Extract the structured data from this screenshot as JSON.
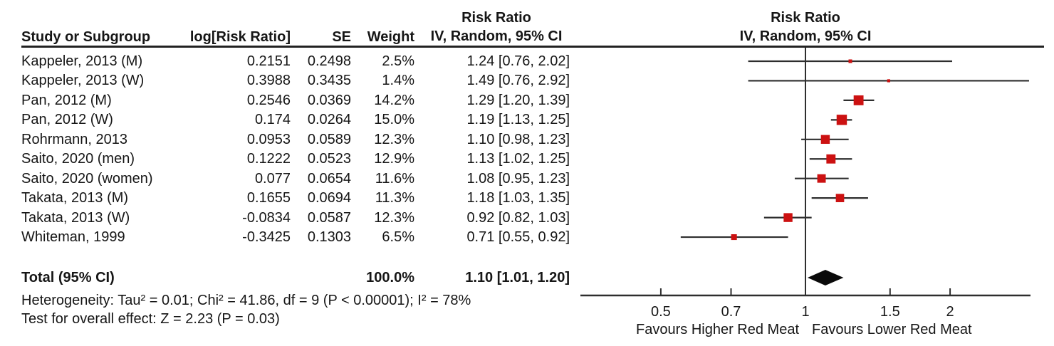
{
  "table": {
    "headers": {
      "study": "Study or Subgroup",
      "log_rr": "log[Risk Ratio]",
      "se": "SE",
      "weight": "Weight",
      "effect_line1": "Risk Ratio",
      "effect_line2": "IV, Random, 95% CI"
    }
  },
  "plot_header": {
    "line1": "Risk Ratio",
    "line2": "IV, Random, 95% CI"
  },
  "total_row": {
    "label": "Total (95% CI)",
    "weight": "100.0%",
    "ci_text": "1.10 [1.01, 1.20]"
  },
  "footer": {
    "heterogeneity": "Heterogeneity: Tau² = 0.01; Chi² = 41.86, df = 9 (P < 0.00001); I² = 78%",
    "overall_effect": "Test for overall effect: Z = 2.23 (P = 0.03)"
  },
  "colors": {
    "marker": "#CC1111",
    "ci_line": "#2E2E2E",
    "axis": "#2E2E2E",
    "diamond": "#0A0A0A",
    "text": "#161616"
  },
  "chart_data": {
    "type": "forest",
    "x_scale": "log",
    "effect_measure": "Risk Ratio",
    "model": "IV, Random, 95% CI",
    "axis_ticks": [
      "0.5",
      "0.7",
      "1",
      "1.5",
      "2"
    ],
    "favours_left": "Favours Higher Red Meat",
    "favours_right": "Favours Lower Red Meat",
    "rows": [
      {
        "study": "Kappeler, 2013 (M)",
        "log_rr": "0.2151",
        "se": "0.2498",
        "weight": "2.5%",
        "ci_text": "1.24 [0.76, 2.02]",
        "rr": 1.24,
        "low": 0.76,
        "high": 2.02,
        "weight_pct": 2.5
      },
      {
        "study": "Kappeler, 2013 (W)",
        "log_rr": "0.3988",
        "se": "0.3435",
        "weight": "1.4%",
        "ci_text": "1.49 [0.76, 2.92]",
        "rr": 1.49,
        "low": 0.76,
        "high": 2.92,
        "weight_pct": 1.4
      },
      {
        "study": "Pan, 2012 (M)",
        "log_rr": "0.2546",
        "se": "0.0369",
        "weight": "14.2%",
        "ci_text": "1.29 [1.20, 1.39]",
        "rr": 1.29,
        "low": 1.2,
        "high": 1.39,
        "weight_pct": 14.2
      },
      {
        "study": "Pan, 2012 (W)",
        "log_rr": "0.174",
        "se": "0.0264",
        "weight": "15.0%",
        "ci_text": "1.19 [1.13, 1.25]",
        "rr": 1.19,
        "low": 1.13,
        "high": 1.25,
        "weight_pct": 15.0
      },
      {
        "study": "Rohrmann, 2013",
        "log_rr": "0.0953",
        "se": "0.0589",
        "weight": "12.3%",
        "ci_text": "1.10 [0.98, 1.23]",
        "rr": 1.1,
        "low": 0.98,
        "high": 1.23,
        "weight_pct": 12.3
      },
      {
        "study": "Saito, 2020 (men)",
        "log_rr": "0.1222",
        "se": "0.0523",
        "weight": "12.9%",
        "ci_text": "1.13 [1.02, 1.25]",
        "rr": 1.13,
        "low": 1.02,
        "high": 1.25,
        "weight_pct": 12.9
      },
      {
        "study": "Saito, 2020 (women)",
        "log_rr": "0.077",
        "se": "0.0654",
        "weight": "11.6%",
        "ci_text": "1.08 [0.95, 1.23]",
        "rr": 1.08,
        "low": 0.95,
        "high": 1.23,
        "weight_pct": 11.6
      },
      {
        "study": "Takata, 2013 (M)",
        "log_rr": "0.1655",
        "se": "0.0694",
        "weight": "11.3%",
        "ci_text": "1.18 [1.03, 1.35]",
        "rr": 1.18,
        "low": 1.03,
        "high": 1.35,
        "weight_pct": 11.3
      },
      {
        "study": "Takata, 2013 (W)",
        "log_rr": "-0.0834",
        "se": "0.0587",
        "weight": "12.3%",
        "ci_text": "0.92 [0.82, 1.03]",
        "rr": 0.92,
        "low": 0.82,
        "high": 1.03,
        "weight_pct": 12.3
      },
      {
        "study": "Whiteman, 1999",
        "log_rr": "-0.3425",
        "se": "0.1303",
        "weight": "6.5%",
        "ci_text": "0.71 [0.55, 0.92]",
        "rr": 0.71,
        "low": 0.55,
        "high": 0.92,
        "weight_pct": 6.5
      }
    ],
    "total": {
      "rr": 1.1,
      "low": 1.01,
      "high": 1.2,
      "weight_pct": 100.0,
      "ci_text": "1.10 [1.01, 1.20]"
    },
    "heterogeneity": "Heterogeneity: Tau² = 0.01; Chi² = 41.86, df = 9 (P < 0.00001); I² = 78%",
    "overall_effect": "Test for overall effect: Z = 2.23 (P = 0.03)"
  }
}
